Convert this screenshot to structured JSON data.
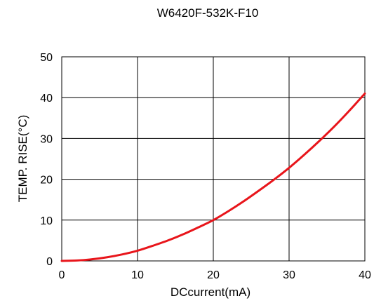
{
  "chart_data": {
    "type": "line",
    "title": "W6420F-532K-F10",
    "xlabel": "DCcurrent(mA)",
    "ylabel": "TEMP. RISE(°C)",
    "xlim": [
      0,
      40
    ],
    "ylim": [
      0,
      50
    ],
    "x_ticks": [
      "0",
      "10",
      "20",
      "30",
      "40"
    ],
    "y_ticks": [
      "0",
      "10",
      "20",
      "30",
      "40",
      "50"
    ],
    "grid": true,
    "series": [
      {
        "color": "#e8151b",
        "x": [
          0,
          2,
          4,
          6,
          8,
          10,
          12,
          14,
          16,
          18,
          20,
          22,
          24,
          26,
          28,
          30,
          32,
          34,
          36,
          38,
          40
        ],
        "y": [
          0,
          0.1,
          0.4,
          0.9,
          1.6,
          2.5,
          3.7,
          5.0,
          6.5,
          8.2,
          10.0,
          12.2,
          14.6,
          17.2,
          19.9,
          22.8,
          26.0,
          29.4,
          33.0,
          36.9,
          41.0
        ]
      }
    ]
  }
}
